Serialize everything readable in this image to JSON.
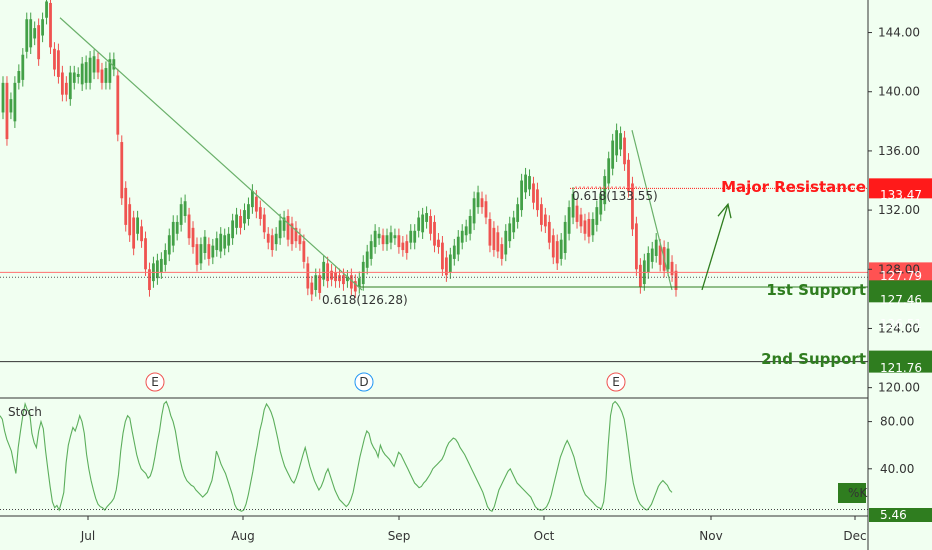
{
  "chart_data": [
    {
      "type": "candlestick",
      "title": "",
      "x_ticks": [
        "Jul",
        "Aug",
        "Sep",
        "Oct",
        "Nov",
        "Dec"
      ],
      "y_ticks": [
        120.0,
        124.0,
        128.0,
        132.0,
        136.0,
        140.0,
        144.0
      ],
      "ylim": [
        119.3,
        146.2
      ],
      "price_series": [
        [
          138.6,
          140.6
        ],
        [
          136.8,
          140.6
        ],
        [
          138.6,
          139.5
        ],
        [
          138.0,
          140.6
        ],
        [
          140.6,
          141.4
        ],
        [
          140.8,
          142.5
        ],
        [
          142.7,
          144.9
        ],
        [
          143.0,
          144.9
        ],
        [
          143.6,
          144.3
        ],
        [
          142.2,
          144.5
        ],
        [
          143.8,
          144.9
        ],
        [
          145.0,
          146.1
        ],
        [
          143.0,
          146.0
        ],
        [
          141.5,
          142.9
        ],
        [
          141.0,
          142.8
        ],
        [
          139.8,
          141.3
        ],
        [
          139.8,
          140.6
        ],
        [
          139.5,
          141.3
        ],
        [
          140.6,
          141.3
        ],
        [
          141.0,
          141.2
        ],
        [
          140.5,
          141.9
        ],
        [
          140.6,
          142.0
        ],
        [
          140.6,
          142.3
        ],
        [
          141.3,
          142.4
        ],
        [
          141.3,
          142.2
        ],
        [
          140.6,
          141.5
        ],
        [
          140.6,
          141.6
        ],
        [
          140.6,
          142.2
        ],
        [
          141.5,
          142.2
        ],
        [
          137.1,
          141.1
        ],
        [
          132.8,
          136.6
        ],
        [
          131.0,
          133.5
        ],
        [
          130.3,
          132.4
        ],
        [
          129.4,
          131.5
        ],
        [
          130.4,
          131.5
        ],
        [
          129.9,
          130.9
        ],
        [
          128.0,
          130.1
        ],
        [
          126.6,
          128.0
        ],
        [
          127.2,
          128.4
        ],
        [
          127.4,
          128.6
        ],
        [
          127.8,
          128.7
        ],
        [
          128.3,
          129.3
        ],
        [
          129.0,
          130.3
        ],
        [
          129.6,
          131.2
        ],
        [
          130.4,
          131.2
        ],
        [
          131.0,
          132.4
        ],
        [
          131.6,
          132.6
        ],
        [
          130.1,
          131.7
        ],
        [
          129.5,
          130.8
        ],
        [
          128.3,
          129.7
        ],
        [
          128.4,
          129.7
        ],
        [
          129.1,
          130.2
        ],
        [
          128.7,
          129.7
        ],
        [
          128.8,
          129.6
        ],
        [
          129.3,
          130.1
        ],
        [
          129.2,
          130.4
        ],
        [
          129.4,
          130.3
        ],
        [
          129.6,
          130.4
        ],
        [
          130.1,
          131.3
        ],
        [
          130.8,
          131.7
        ],
        [
          130.8,
          131.6
        ],
        [
          131.1,
          132.0
        ],
        [
          131.4,
          132.4
        ],
        [
          132.2,
          133.3
        ],
        [
          131.9,
          132.9
        ],
        [
          131.4,
          132.2
        ],
        [
          130.5,
          131.7
        ],
        [
          129.8,
          130.4
        ],
        [
          129.3,
          130.3
        ],
        [
          129.7,
          130.4
        ],
        [
          130.1,
          131.3
        ],
        [
          130.6,
          131.5
        ],
        [
          130.0,
          131.6
        ],
        [
          129.7,
          131.1
        ],
        [
          129.9,
          130.8
        ],
        [
          129.7,
          130.3
        ],
        [
          128.5,
          129.9
        ],
        [
          126.7,
          128.4
        ],
        [
          126.3,
          127.1
        ],
        [
          126.6,
          127.6
        ],
        [
          126.4,
          127.6
        ],
        [
          127.3,
          128.5
        ],
        [
          127.2,
          128.4
        ],
        [
          127.3,
          127.9
        ],
        [
          127.2,
          127.8
        ],
        [
          127.2,
          127.6
        ],
        [
          127.0,
          127.6
        ],
        [
          127.2,
          127.5
        ],
        [
          126.7,
          127.6
        ],
        [
          126.5,
          127.2
        ],
        [
          126.8,
          127.4
        ],
        [
          127.0,
          128.5
        ],
        [
          128.1,
          129.2
        ],
        [
          128.7,
          129.9
        ],
        [
          129.5,
          130.6
        ],
        [
          130.1,
          130.4
        ],
        [
          129.7,
          130.3
        ],
        [
          129.7,
          130.3
        ],
        [
          129.8,
          130.5
        ],
        [
          130.1,
          130.3
        ],
        [
          129.5,
          130.3
        ],
        [
          129.3,
          129.8
        ],
        [
          129.1,
          129.9
        ],
        [
          129.8,
          130.6
        ],
        [
          129.8,
          130.6
        ],
        [
          130.6,
          131.5
        ],
        [
          130.5,
          131.7
        ],
        [
          131.2,
          131.8
        ],
        [
          130.4,
          131.6
        ],
        [
          129.6,
          131.2
        ],
        [
          129.5,
          130.0
        ],
        [
          128.0,
          129.8
        ],
        [
          127.6,
          128.8
        ],
        [
          127.8,
          129.0
        ],
        [
          128.7,
          129.6
        ],
        [
          129.0,
          130.2
        ],
        [
          129.8,
          130.6
        ],
        [
          130.3,
          130.9
        ],
        [
          130.4,
          131.6
        ],
        [
          131.1,
          132.8
        ],
        [
          132.2,
          133.2
        ],
        [
          132.2,
          132.8
        ],
        [
          131.5,
          132.6
        ],
        [
          129.6,
          131.4
        ],
        [
          129.3,
          130.8
        ],
        [
          129.2,
          130.5
        ],
        [
          128.7,
          129.7
        ],
        [
          129.0,
          130.6
        ],
        [
          129.9,
          131.1
        ],
        [
          130.5,
          131.5
        ],
        [
          131.2,
          132.4
        ],
        [
          132.0,
          134.0
        ],
        [
          133.2,
          134.4
        ],
        [
          133.4,
          134.3
        ],
        [
          132.5,
          133.8
        ],
        [
          132.0,
          133.4
        ],
        [
          131.0,
          132.4
        ],
        [
          130.9,
          131.7
        ],
        [
          129.8,
          131.2
        ],
        [
          128.8,
          130.3
        ],
        [
          128.4,
          129.9
        ],
        [
          128.7,
          130.0
        ],
        [
          129.1,
          131.2
        ],
        [
          130.4,
          132.2
        ],
        [
          131.5,
          133.1
        ],
        [
          131.2,
          132.3
        ],
        [
          130.9,
          131.7
        ],
        [
          130.4,
          131.3
        ],
        [
          130.2,
          131.4
        ],
        [
          130.3,
          131.4
        ],
        [
          131.0,
          132.2
        ],
        [
          131.7,
          133.1
        ],
        [
          132.4,
          134.3
        ],
        [
          133.8,
          135.5
        ],
        [
          134.8,
          136.7
        ],
        [
          135.7,
          137.4
        ],
        [
          136.1,
          137.2
        ],
        [
          135.1,
          136.9
        ],
        [
          133.3,
          135.4
        ],
        [
          130.7,
          133.8
        ],
        [
          128.0,
          131.1
        ],
        [
          126.8,
          128.3
        ],
        [
          127.0,
          128.6
        ],
        [
          127.8,
          129.1
        ],
        [
          128.5,
          129.4
        ],
        [
          128.9,
          130.0
        ],
        [
          128.3,
          129.6
        ],
        [
          127.9,
          129.5
        ],
        [
          128.0,
          129.4
        ],
        [
          127.6,
          128.5
        ],
        [
          126.6,
          127.9
        ]
      ],
      "stochastic_series": [
        85,
        82,
        72,
        65,
        60,
        55,
        45,
        36,
        58,
        72,
        85,
        95,
        90,
        88,
        70,
        62,
        58,
        72,
        80,
        74,
        55,
        40,
        25,
        12,
        7,
        9,
        5,
        12,
        20,
        45,
        60,
        68,
        75,
        72,
        78,
        85,
        80,
        70,
        52,
        40,
        30,
        22,
        15,
        10,
        8,
        7,
        5,
        8,
        10,
        12,
        15,
        22,
        35,
        55,
        70,
        80,
        85,
        83,
        72,
        62,
        52,
        45,
        40,
        38,
        36,
        32,
        34,
        40,
        50,
        62,
        72,
        85,
        95,
        97,
        92,
        85,
        80,
        72,
        60,
        48,
        40,
        34,
        30,
        28,
        26,
        25,
        22,
        20,
        18,
        16,
        18,
        20,
        25,
        30,
        40,
        55,
        50,
        44,
        40,
        36,
        30,
        24,
        18,
        10,
        6,
        5,
        4,
        5,
        10,
        18,
        28,
        38,
        50,
        60,
        72,
        80,
        90,
        95,
        92,
        88,
        82,
        74,
        65,
        55,
        48,
        42,
        38,
        34,
        30,
        28,
        32,
        38,
        45,
        52,
        58,
        50,
        42,
        36,
        30,
        26,
        22,
        25,
        30,
        36,
        40,
        34,
        28,
        22,
        18,
        14,
        12,
        10,
        8,
        10,
        14,
        20,
        30,
        40,
        50,
        58,
        66,
        72,
        70,
        62,
        58,
        55,
        50,
        60,
        55,
        52,
        50,
        48,
        45,
        42,
        48,
        54,
        52,
        48,
        44,
        40,
        36,
        32,
        28,
        26,
        24,
        25,
        28,
        30,
        33,
        36,
        40,
        42,
        44,
        46,
        48,
        52,
        58,
        62,
        64,
        66,
        65,
        62,
        58,
        55,
        52,
        48,
        44,
        40,
        36,
        32,
        28,
        24,
        20,
        14,
        8,
        5,
        4,
        8,
        15,
        22,
        26,
        30,
        34,
        38,
        40,
        36,
        32,
        28,
        26,
        24,
        22,
        20,
        18,
        16,
        12,
        8,
        6,
        5,
        5,
        6,
        8,
        12,
        18,
        26,
        34,
        42,
        50,
        55,
        60,
        64,
        60,
        55,
        50,
        42,
        35,
        28,
        22,
        18,
        16,
        14,
        12,
        10,
        8,
        7,
        6,
        12,
        30,
        60,
        85,
        95,
        97,
        95,
        92,
        88,
        82,
        70,
        55,
        40,
        28,
        20,
        14,
        10,
        8,
        6,
        5,
        7,
        10,
        15,
        20,
        25,
        28,
        30,
        28,
        26,
        22,
        20
      ],
      "stochastic_ylim": [
        0,
        100
      ],
      "stochastic_ticks": [
        80.0,
        40.0
      ],
      "fib_lines": [
        {
          "from": [
            144.9,
            126.28
          ],
          "label": "0.618(126.28)"
        },
        {
          "from": [
            137.4,
            127.46
          ],
          "label": "0.618(133.55)"
        }
      ],
      "annotations": {
        "major_resistance": {
          "label": "Major Resistance",
          "value": "133.47",
          "color": "#ff1a1a"
        },
        "first_support": {
          "label": "1st Support",
          "value": "126.51",
          "color": "#2f7d1f"
        },
        "second_support": {
          "label": "2nd Support",
          "value": "121.76",
          "color": "#2f7d1f"
        },
        "price_1": {
          "value": "127.79",
          "color": "#ff5252"
        },
        "price_2": {
          "value": "127.46",
          "color": "#ff5252"
        },
        "stoch_current": {
          "value": "5.46",
          "color": "#2f7d1f"
        },
        "stoch_label": "Stoch",
        "k_label": "%K"
      },
      "event_markers": [
        {
          "label": "E",
          "color": "#ef5350"
        },
        {
          "label": "D",
          "color": "#2196f3"
        },
        {
          "label": "E",
          "color": "#ef5350"
        }
      ]
    }
  ]
}
